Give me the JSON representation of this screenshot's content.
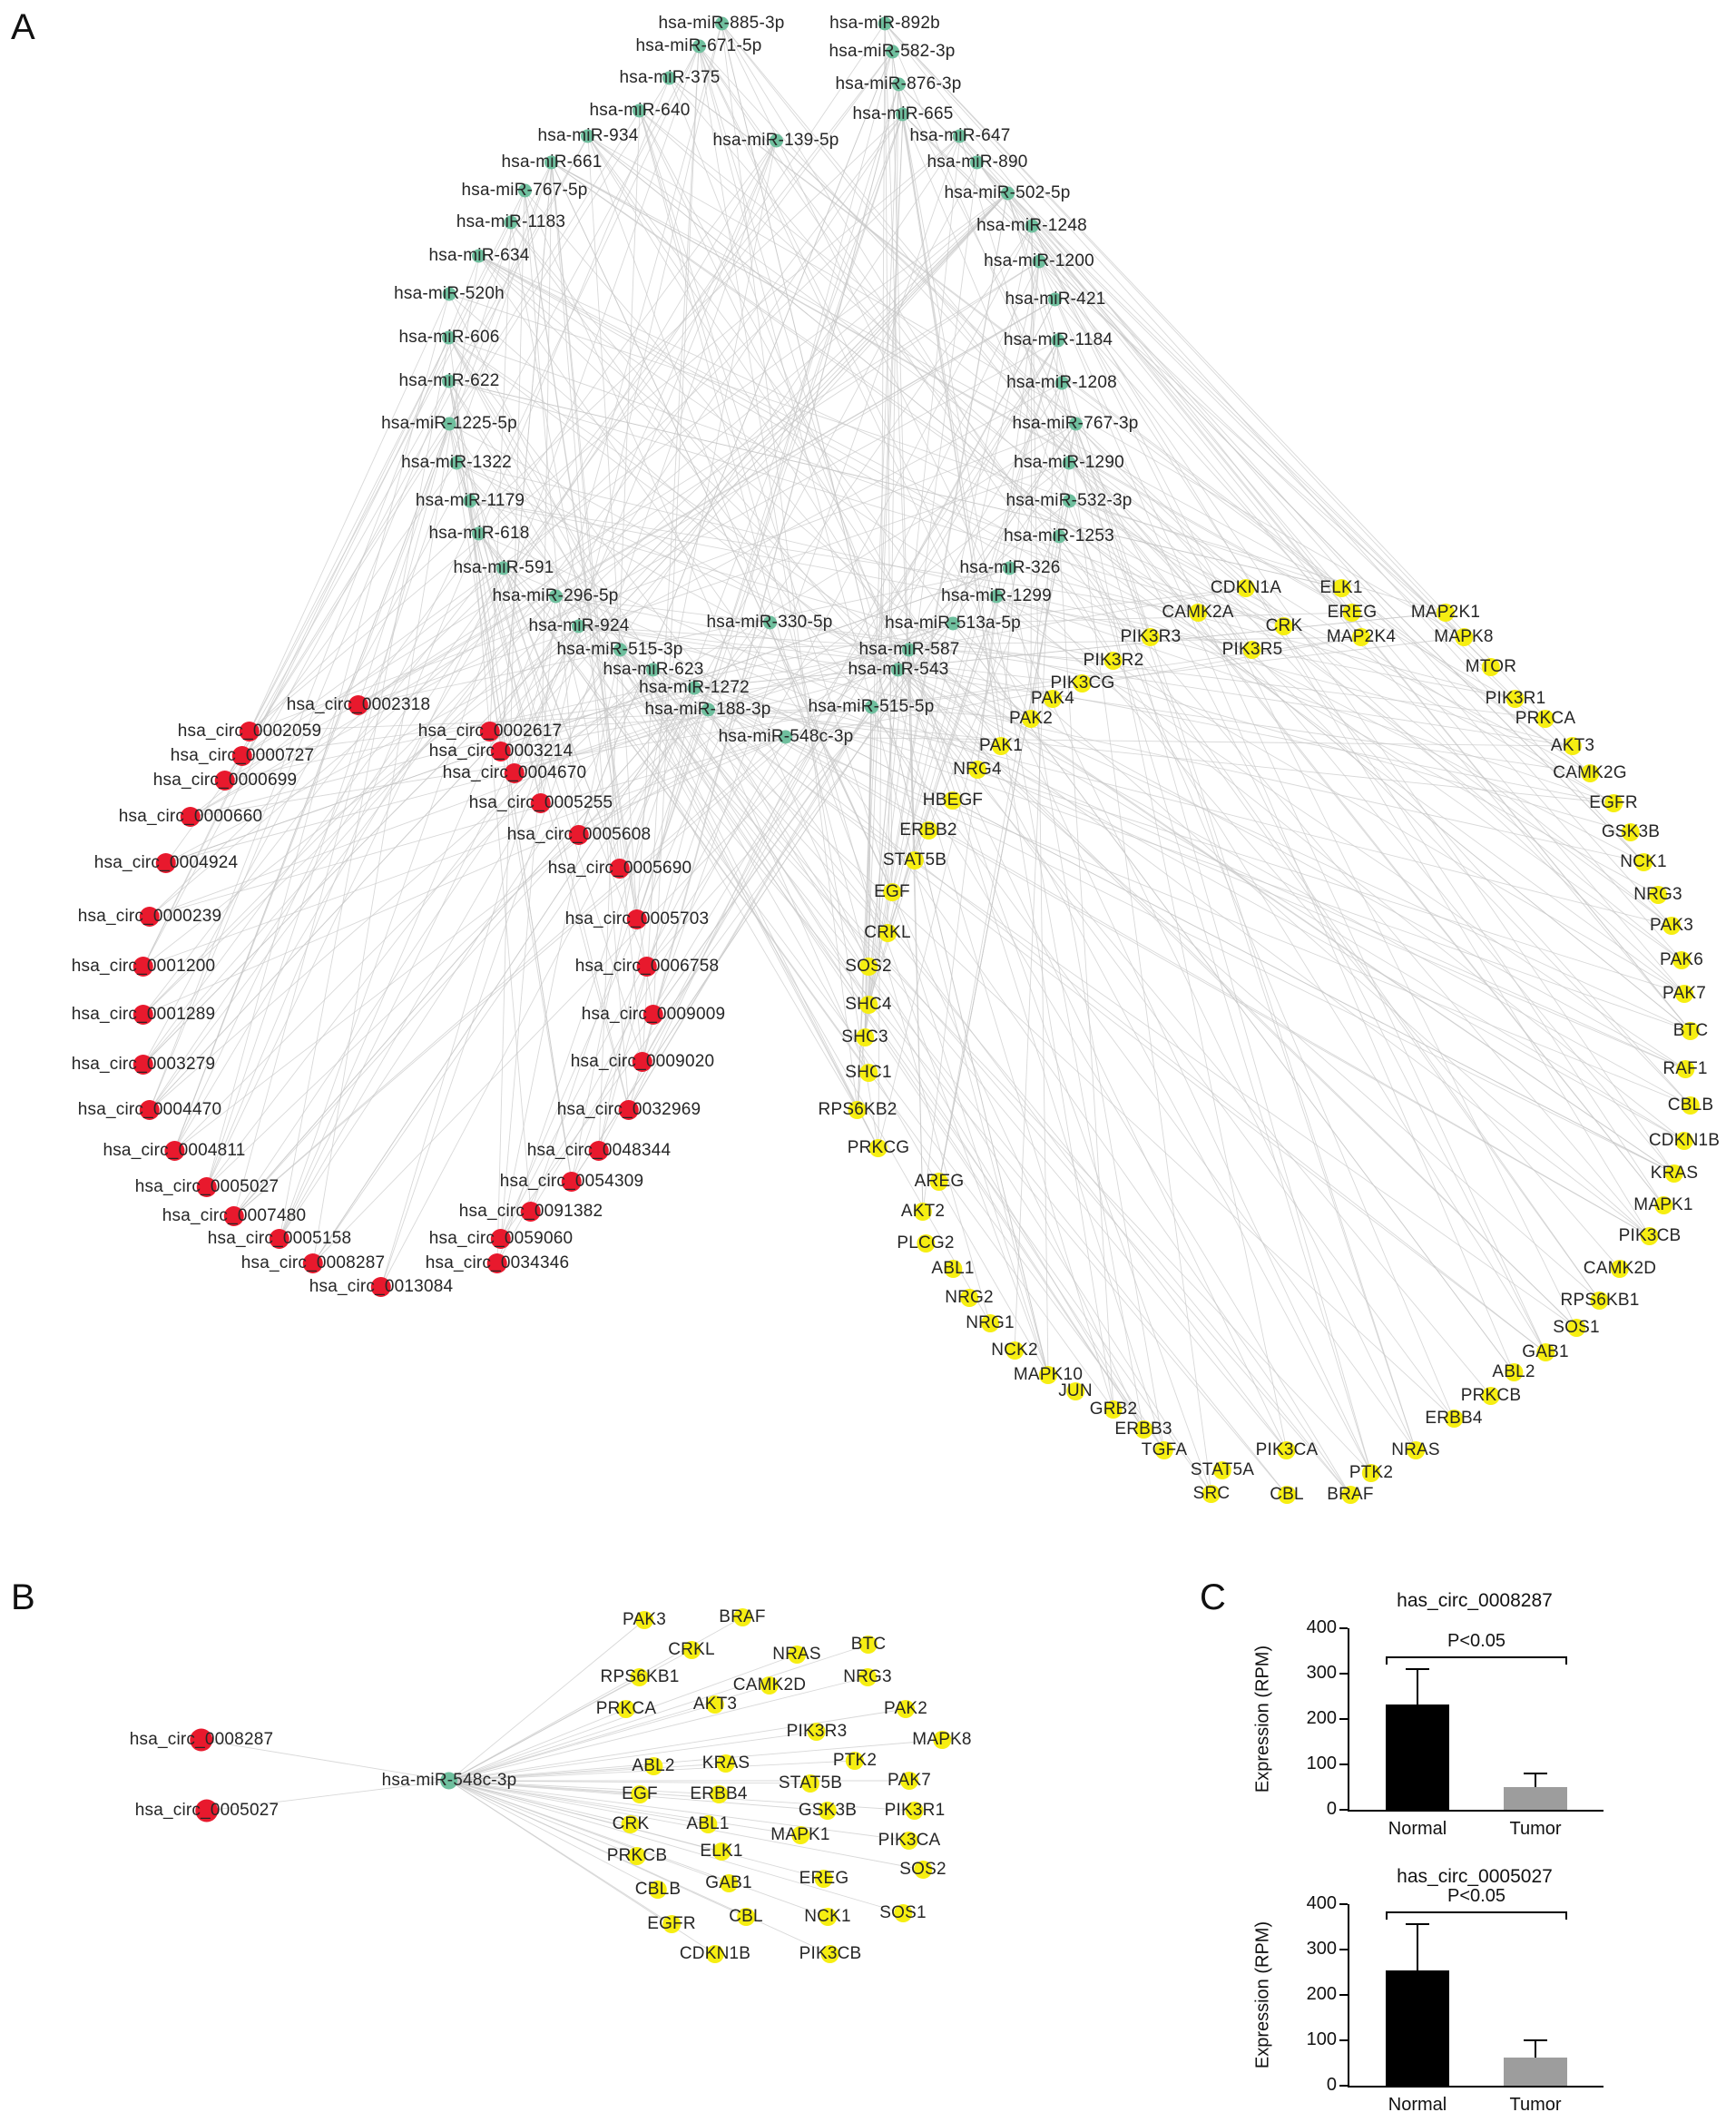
{
  "panels": {
    "a_label": "A",
    "b_label": "B",
    "c_label": "C"
  },
  "colors": {
    "circrna": "#e8192d",
    "mirna": "#6fbf9e",
    "gene": "#f6ee12",
    "edge": "#c7c7c7"
  },
  "network_a": {
    "mirnas": [
      [
        "hsa-miR-885-3p",
        795,
        26
      ],
      [
        "hsa-miR-892b",
        975,
        26
      ],
      [
        "hsa-miR-671-5p",
        770,
        51
      ],
      [
        "hsa-miR-582-3p",
        983,
        57
      ],
      [
        "hsa-miR-375",
        738,
        86
      ],
      [
        "hsa-miR-876-3p",
        990,
        93
      ],
      [
        "hsa-miR-640",
        705,
        122
      ],
      [
        "hsa-miR-665",
        995,
        126
      ],
      [
        "hsa-miR-934",
        648,
        150
      ],
      [
        "hsa-miR-139-5p",
        855,
        155
      ],
      [
        "hsa-miR-647",
        1058,
        150
      ],
      [
        "hsa-miR-661",
        608,
        179
      ],
      [
        "hsa-miR-890",
        1077,
        179
      ],
      [
        "hsa-miR-767-5p",
        578,
        210
      ],
      [
        "hsa-miR-502-5p",
        1110,
        213
      ],
      [
        "hsa-miR-1183",
        563,
        245
      ],
      [
        "hsa-miR-1248",
        1137,
        249
      ],
      [
        "hsa-miR-634",
        528,
        282
      ],
      [
        "hsa-miR-1200",
        1145,
        288
      ],
      [
        "hsa-miR-520h",
        495,
        324
      ],
      [
        "hsa-miR-421",
        1163,
        330
      ],
      [
        "hsa-miR-606",
        495,
        372
      ],
      [
        "hsa-miR-1184",
        1166,
        375
      ],
      [
        "hsa-miR-622",
        495,
        420
      ],
      [
        "hsa-miR-1208",
        1170,
        422
      ],
      [
        "hsa-miR-1225-5p",
        495,
        467
      ],
      [
        "hsa-miR-767-3p",
        1185,
        467
      ],
      [
        "hsa-miR-1322",
        503,
        510
      ],
      [
        "hsa-miR-1290",
        1178,
        510
      ],
      [
        "hsa-miR-1179",
        518,
        552
      ],
      [
        "hsa-miR-532-3p",
        1178,
        552
      ],
      [
        "hsa-miR-618",
        528,
        588
      ],
      [
        "hsa-miR-1253",
        1167,
        591
      ],
      [
        "hsa-miR-591",
        555,
        626
      ],
      [
        "hsa-miR-326",
        1113,
        626
      ],
      [
        "hsa-miR-296-5p",
        612,
        657
      ],
      [
        "hsa-miR-1299",
        1098,
        657
      ],
      [
        "hsa-miR-924",
        638,
        690
      ],
      [
        "hsa-miR-330-5p",
        848,
        686
      ],
      [
        "hsa-miR-513a-5p",
        1050,
        687
      ],
      [
        "hsa-miR-515-3p",
        683,
        716
      ],
      [
        "hsa-miR-587",
        1002,
        716
      ],
      [
        "hsa-miR-623",
        720,
        738
      ],
      [
        "hsa-miR-1272",
        765,
        758
      ],
      [
        "hsa-miR-543",
        990,
        738
      ],
      [
        "hsa-miR-188-3p",
        780,
        782
      ],
      [
        "hsa-miR-515-5p",
        960,
        779
      ],
      [
        "hsa-miR-548c-3p",
        866,
        812
      ]
    ],
    "circrnas": [
      [
        "hsa_circ_0002318",
        395,
        777
      ],
      [
        "hsa_circ_0002059",
        275,
        806
      ],
      [
        "hsa_circ_0002617",
        540,
        806
      ],
      [
        "hsa_circ_0000727",
        267,
        833
      ],
      [
        "hsa_circ_0003214",
        552,
        828
      ],
      [
        "hsa_circ_0000699",
        248,
        860
      ],
      [
        "hsa_circ_0004670",
        567,
        852
      ],
      [
        "hsa_circ_0005255",
        596,
        885
      ],
      [
        "hsa_circ_0000660",
        210,
        900
      ],
      [
        "hsa_circ_0005608",
        638,
        920
      ],
      [
        "hsa_circ_0004924",
        183,
        951
      ],
      [
        "hsa_circ_0005690",
        683,
        957
      ],
      [
        "hsa_circ_0000239",
        165,
        1010
      ],
      [
        "hsa_circ_0005703",
        702,
        1013
      ],
      [
        "hsa_circ_0001200",
        158,
        1065
      ],
      [
        "hsa_circ_0006758",
        713,
        1065
      ],
      [
        "hsa_circ_0001289",
        158,
        1118
      ],
      [
        "hsa_circ_0009009",
        720,
        1118
      ],
      [
        "hsa_circ_0003279",
        158,
        1173
      ],
      [
        "hsa_circ_0009020",
        708,
        1170
      ],
      [
        "hsa_circ_0004470",
        165,
        1223
      ],
      [
        "hsa_circ_0032969",
        693,
        1223
      ],
      [
        "hsa_circ_0004811",
        192,
        1268
      ],
      [
        "hsa_circ_0048344",
        660,
        1268
      ],
      [
        "hsa_circ_0005027",
        228,
        1308
      ],
      [
        "hsa_circ_0054309",
        630,
        1302
      ],
      [
        "hsa_circ_0007480",
        258,
        1340
      ],
      [
        "hsa_circ_0091382",
        585,
        1335
      ],
      [
        "hsa_circ_0005158",
        308,
        1365
      ],
      [
        "hsa_circ_0059060",
        552,
        1365
      ],
      [
        "hsa_circ_0008287",
        345,
        1392
      ],
      [
        "hsa_circ_0034346",
        548,
        1392
      ],
      [
        "hsa_circ_0013084",
        420,
        1418
      ]
    ],
    "genes": [
      [
        "CDKN1A",
        1373,
        648
      ],
      [
        "ELK1",
        1478,
        648
      ],
      [
        "CAMK2A",
        1320,
        675
      ],
      [
        "EREG",
        1490,
        675
      ],
      [
        "MAP2K1",
        1593,
        675
      ],
      [
        "CRK",
        1415,
        690
      ],
      [
        "MAP2K4",
        1500,
        702
      ],
      [
        "MAPK8",
        1613,
        702
      ],
      [
        "PIK3R3",
        1268,
        702
      ],
      [
        "PIK3R5",
        1380,
        716
      ],
      [
        "MTOR",
        1643,
        735
      ],
      [
        "PIK3R2",
        1227,
        728
      ],
      [
        "PIK3CG",
        1193,
        753
      ],
      [
        "PAK4",
        1160,
        770
      ],
      [
        "PIK3R1",
        1670,
        770
      ],
      [
        "PRKCA",
        1703,
        792
      ],
      [
        "PAK2",
        1136,
        792
      ],
      [
        "AKT3",
        1733,
        822
      ],
      [
        "PAK1",
        1103,
        822
      ],
      [
        "CAMK2G",
        1752,
        852
      ],
      [
        "NRG4",
        1077,
        848
      ],
      [
        "EGFR",
        1778,
        885
      ],
      [
        "HBEGF",
        1050,
        882
      ],
      [
        "GSK3B",
        1797,
        917
      ],
      [
        "ERBB2",
        1023,
        915
      ],
      [
        "NCK1",
        1811,
        950
      ],
      [
        "STAT5B",
        1008,
        948
      ],
      [
        "NRG3",
        1827,
        986
      ],
      [
        "EGF",
        983,
        983
      ],
      [
        "PAK3",
        1842,
        1020
      ],
      [
        "CRKL",
        978,
        1028
      ],
      [
        "PAK6",
        1853,
        1058
      ],
      [
        "SOS2",
        957,
        1065
      ],
      [
        "PAK7",
        1856,
        1095
      ],
      [
        "SHC4",
        957,
        1107
      ],
      [
        "BTC",
        1863,
        1136
      ],
      [
        "SHC3",
        953,
        1143
      ],
      [
        "RAF1",
        1857,
        1178
      ],
      [
        "SHC1",
        957,
        1182
      ],
      [
        "CBLB",
        1863,
        1218
      ],
      [
        "RPS6KB2",
        945,
        1223
      ],
      [
        "CDKN1B",
        1856,
        1257
      ],
      [
        "PRKCG",
        968,
        1265
      ],
      [
        "KRAS",
        1845,
        1293
      ],
      [
        "AREG",
        1035,
        1302
      ],
      [
        "MAPK1",
        1833,
        1328
      ],
      [
        "AKT2",
        1017,
        1335
      ],
      [
        "PIK3CB",
        1818,
        1362
      ],
      [
        "PLCG2",
        1020,
        1370
      ],
      [
        "CAMK2D",
        1785,
        1398
      ],
      [
        "ABL1",
        1050,
        1398
      ],
      [
        "RPS6KB1",
        1763,
        1433
      ],
      [
        "NRG2",
        1068,
        1430
      ],
      [
        "SOS1",
        1737,
        1463
      ],
      [
        "NRG1",
        1091,
        1458
      ],
      [
        "GAB1",
        1703,
        1490
      ],
      [
        "NCK2",
        1118,
        1488
      ],
      [
        "ABL2",
        1668,
        1512
      ],
      [
        "MAPK10",
        1155,
        1515
      ],
      [
        "PRKCB",
        1643,
        1538
      ],
      [
        "JUN",
        1185,
        1533
      ],
      [
        "GRB2",
        1227,
        1553
      ],
      [
        "ERBB4",
        1602,
        1563
      ],
      [
        "ERBB3",
        1260,
        1575
      ],
      [
        "NRAS",
        1560,
        1598
      ],
      [
        "TGFA",
        1283,
        1598
      ],
      [
        "PIK3CA",
        1418,
        1598
      ],
      [
        "STAT5A",
        1347,
        1620
      ],
      [
        "PTK2",
        1511,
        1623
      ],
      [
        "SRC",
        1335,
        1646
      ],
      [
        "CBL",
        1418,
        1647
      ],
      [
        "BRAF",
        1488,
        1647
      ]
    ]
  },
  "network_b": {
    "circrnas": [
      [
        "hsa_circ_0008287",
        222,
        1917
      ],
      [
        "hsa_circ_0005027",
        228,
        1995
      ]
    ],
    "mirna": [
      "hsa-miR-548c-3p",
      495,
      1962
    ],
    "genes": [
      [
        "PAK3",
        710,
        1785
      ],
      [
        "BRAF",
        818,
        1782
      ],
      [
        "CRKL",
        762,
        1818
      ],
      [
        "NRAS",
        878,
        1823
      ],
      [
        "BTC",
        957,
        1812
      ],
      [
        "RPS6KB1",
        705,
        1848
      ],
      [
        "CAMK2D",
        848,
        1857
      ],
      [
        "NRG3",
        956,
        1848
      ],
      [
        "PRKCA",
        690,
        1883
      ],
      [
        "AKT3",
        788,
        1878
      ],
      [
        "PAK2",
        998,
        1883
      ],
      [
        "PIK3R3",
        900,
        1908
      ],
      [
        "MAPK8",
        1038,
        1917
      ],
      [
        "ABL2",
        720,
        1946
      ],
      [
        "KRAS",
        800,
        1943
      ],
      [
        "PTK2",
        942,
        1940
      ],
      [
        "STAT5B",
        893,
        1965
      ],
      [
        "PAK7",
        1002,
        1962
      ],
      [
        "EGF",
        705,
        1977
      ],
      [
        "ERBB4",
        792,
        1977
      ],
      [
        "GSK3B",
        912,
        1995
      ],
      [
        "PIK3R1",
        1008,
        1995
      ],
      [
        "CRK",
        695,
        2010
      ],
      [
        "ABL1",
        780,
        2010
      ],
      [
        "MAPK1",
        882,
        2022
      ],
      [
        "PIK3CA",
        1002,
        2028
      ],
      [
        "PRKCB",
        702,
        2045
      ],
      [
        "ELK1",
        795,
        2040
      ],
      [
        "SOS2",
        1017,
        2060
      ],
      [
        "CBLB",
        725,
        2082
      ],
      [
        "GAB1",
        803,
        2075
      ],
      [
        "EREG",
        908,
        2070
      ],
      [
        "EGFR",
        740,
        2120
      ],
      [
        "CBL",
        822,
        2112
      ],
      [
        "NCK1",
        912,
        2112
      ],
      [
        "SOS1",
        995,
        2108
      ],
      [
        "CDKN1B",
        788,
        2153
      ],
      [
        "PIK3CB",
        915,
        2153
      ]
    ]
  },
  "chart_data": [
    {
      "type": "bar",
      "title": "has_circ_0008287",
      "ylabel": "Expression (RPM)",
      "ylim": [
        0,
        400
      ],
      "yticks": [
        0,
        100,
        200,
        300,
        400
      ],
      "categories": [
        "Normal",
        "Tumor"
      ],
      "values": [
        232,
        50
      ],
      "errors": [
        78,
        30
      ],
      "bar_colors": [
        "#000000",
        "#9d9d9d"
      ],
      "significance": "P<0.05"
    },
    {
      "type": "bar",
      "title": "has_circ_0005027",
      "ylabel": "Expression (RPM)",
      "ylim": [
        0,
        400
      ],
      "yticks": [
        0,
        100,
        200,
        300,
        400
      ],
      "categories": [
        "Normal",
        "Tumor"
      ],
      "values": [
        255,
        62
      ],
      "errors": [
        102,
        38
      ],
      "bar_colors": [
        "#000000",
        "#9d9d9d"
      ],
      "significance": "P<0.05"
    }
  ]
}
